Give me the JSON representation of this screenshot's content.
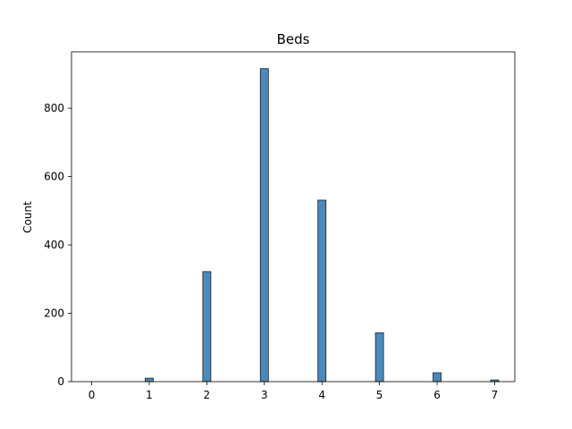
{
  "chart_data": {
    "type": "bar",
    "title": "Beds",
    "xlabel": "",
    "ylabel": "Count",
    "xlim": [
      -0.35,
      7.35
    ],
    "ylim": [
      0,
      965
    ],
    "xticks": [
      0,
      1,
      2,
      3,
      4,
      5,
      6,
      7
    ],
    "yticks": [
      0,
      200,
      400,
      600,
      800
    ],
    "grid": false,
    "bar_width": 0.14,
    "categories": [
      "0",
      "1",
      "2",
      "3",
      "4",
      "5",
      "6",
      "7"
    ],
    "values": [
      0,
      10,
      322,
      916,
      531,
      143,
      26,
      5
    ],
    "colors": {
      "bar_fill": "#4a89bc",
      "bar_edge": "#1f1f1f"
    }
  }
}
